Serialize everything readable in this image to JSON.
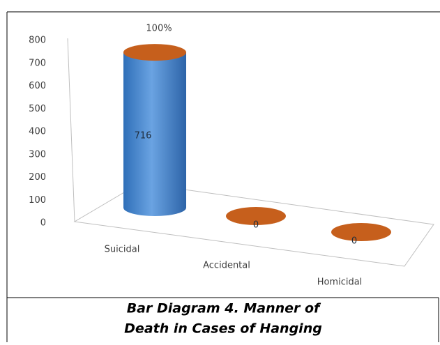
{
  "chart_data": {
    "type": "cylinder",
    "categories": [
      "Suicidal",
      "Accidental",
      "Homicidal"
    ],
    "values": [
      716,
      0,
      0
    ],
    "value_labels": [
      "716",
      "0",
      "0"
    ],
    "annotation": "100%",
    "ylim": [
      0,
      800
    ],
    "yticks": [
      0,
      100,
      200,
      300,
      400,
      500,
      600,
      700,
      800
    ],
    "body_color": "#4a88d0",
    "top_color": "#c65f1c",
    "caption": [
      "Bar Diagram 4. Manner of",
      "Death in Cases of Hanging"
    ]
  }
}
